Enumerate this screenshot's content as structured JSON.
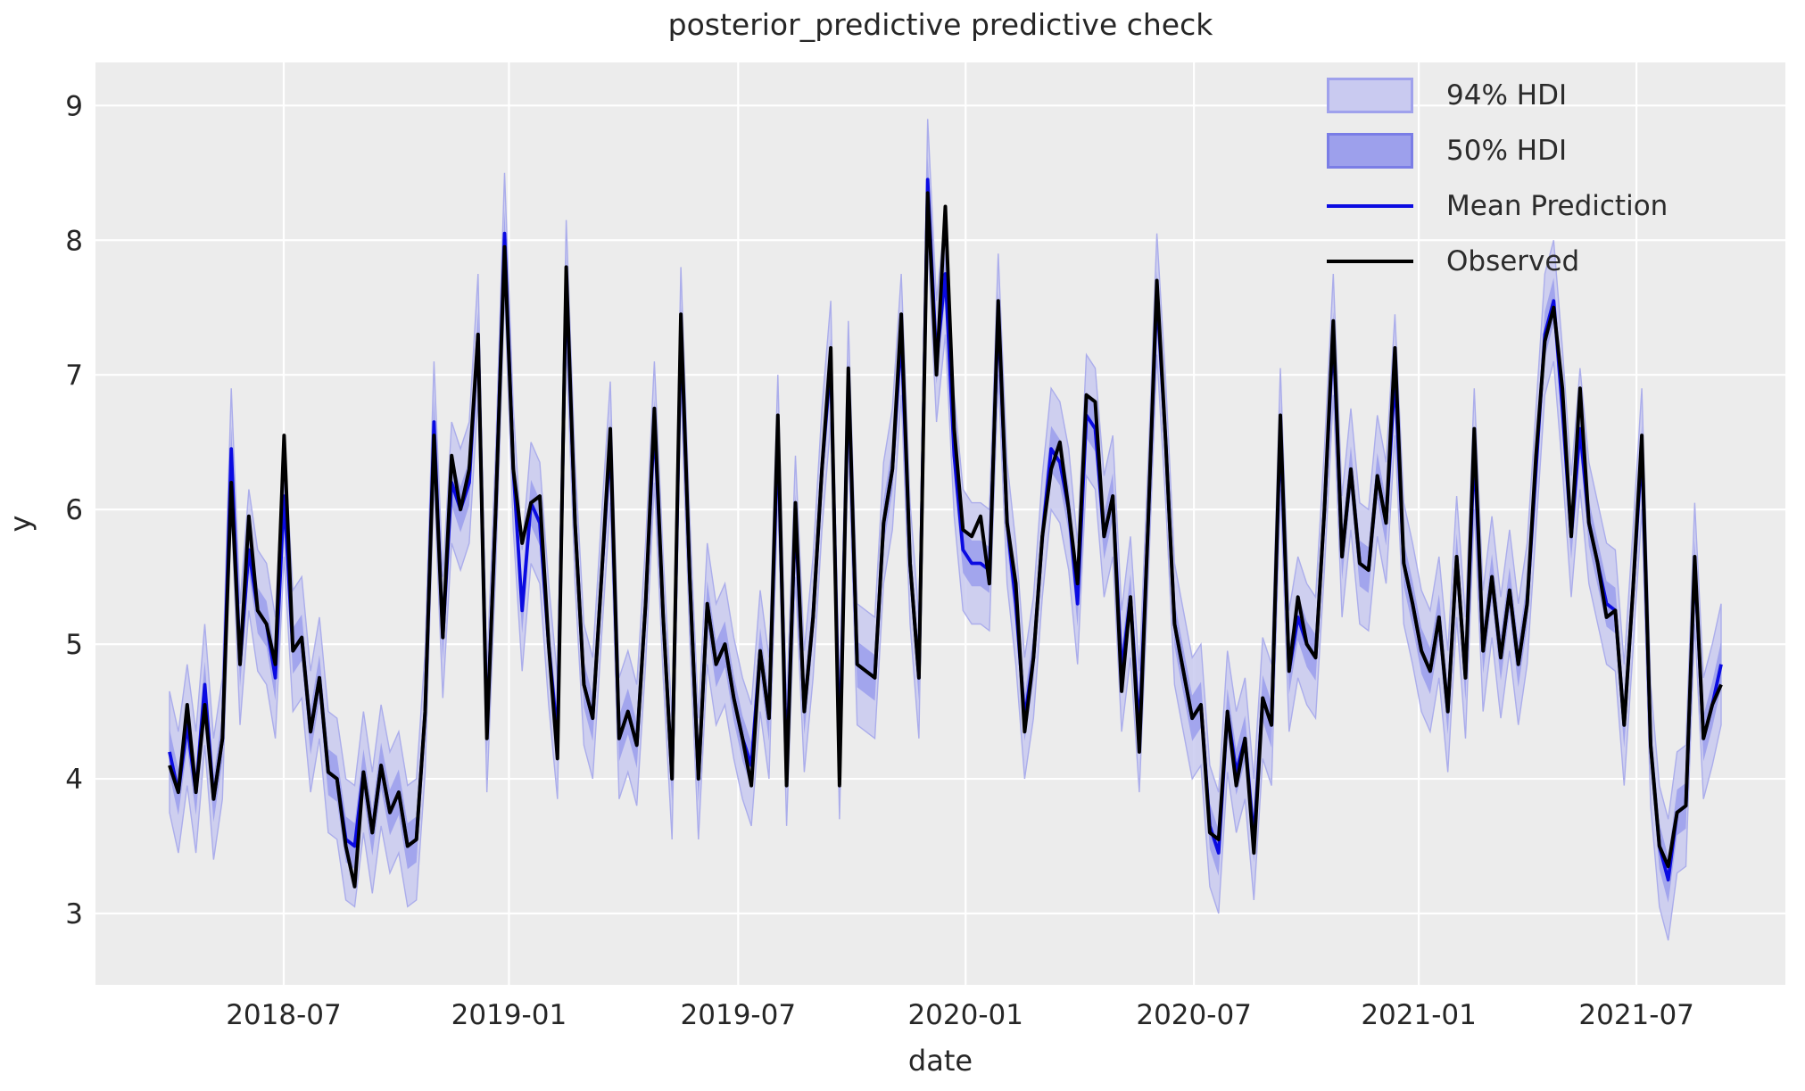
{
  "figure": {
    "title": "posterior_predictive predictive check",
    "xlabel": "date",
    "ylabel": "y"
  },
  "legend": {
    "items": [
      {
        "label": "94% HDI",
        "kind": "patch",
        "fill": "#c9caf0",
        "edge": "#9fa1ec"
      },
      {
        "label": "50% HDI",
        "kind": "patch",
        "fill": "#9da0ec",
        "edge": "#7a7de6"
      },
      {
        "label": "Mean Prediction",
        "kind": "line",
        "color": "#0b0be1"
      },
      {
        "label": "Observed",
        "kind": "line",
        "color": "#000000"
      }
    ]
  },
  "chart_data": {
    "type": "line",
    "title": "posterior_predictive predictive check",
    "xlabel": "date",
    "ylabel": "y",
    "background_color": "#ececec",
    "grid_color": "#ffffff",
    "text_color": "#262626",
    "grid": true,
    "legend_position": "upper right",
    "y_ticks": [
      3,
      4,
      5,
      6,
      7,
      8,
      9
    ],
    "ylim": [
      2.47,
      9.32
    ],
    "x_tick_labels": [
      "2018-07",
      "2019-01",
      "2019-07",
      "2020-01",
      "2020-07",
      "2021-01",
      "2021-07"
    ],
    "x_tick_weeks": [
      12.95,
      38.5,
      64.5,
      90.3,
      116.2,
      141.7,
      166.4
    ],
    "x_domain_weeks": [
      0,
      176
    ],
    "x_description": "weekly points, first point plotted at left data margin, dates per axis ticks",
    "series": [
      {
        "name": "Observed",
        "color": "#000000",
        "values": [
          4.1,
          3.9,
          4.55,
          3.9,
          4.55,
          3.85,
          4.3,
          6.2,
          4.85,
          5.95,
          5.25,
          5.15,
          4.85,
          6.55,
          4.95,
          5.05,
          4.35,
          4.75,
          4.05,
          4.0,
          3.5,
          3.2,
          4.05,
          3.6,
          4.1,
          3.75,
          3.9,
          3.5,
          3.55,
          4.5,
          6.55,
          5.05,
          6.4,
          6.0,
          6.3,
          7.3,
          4.3,
          6.0,
          7.95,
          6.3,
          5.75,
          6.05,
          6.1,
          5.0,
          4.15,
          7.8,
          5.9,
          4.7,
          4.45,
          5.5,
          6.6,
          4.3,
          4.5,
          4.25,
          5.3,
          6.75,
          5.2,
          4.0,
          7.45,
          5.5,
          4.0,
          5.3,
          4.85,
          5.0,
          4.6,
          4.3,
          3.95,
          4.95,
          4.45,
          6.7,
          3.95,
          6.05,
          4.5,
          5.2,
          6.3,
          7.2,
          3.95,
          7.05,
          4.85,
          4.8,
          4.75,
          5.9,
          6.3,
          7.45,
          5.6,
          4.75,
          8.35,
          7.0,
          8.25,
          6.6,
          5.85,
          5.8,
          5.95,
          5.45,
          7.55,
          5.9,
          5.45,
          4.35,
          4.9,
          5.8,
          6.3,
          6.5,
          6.0,
          5.45,
          6.85,
          6.8,
          5.8,
          6.1,
          4.65,
          5.35,
          4.2,
          5.9,
          7.7,
          6.5,
          5.15,
          4.8,
          4.45,
          4.55,
          3.6,
          3.55,
          4.5,
          3.95,
          4.3,
          3.45,
          4.6,
          4.4,
          6.7,
          4.8,
          5.35,
          5.0,
          4.9,
          6.0,
          7.4,
          5.65,
          6.3,
          5.6,
          5.55,
          6.25,
          5.9,
          7.2,
          5.6,
          5.3,
          4.95,
          4.8,
          5.2,
          4.5,
          5.65,
          4.75,
          6.6,
          4.95,
          5.5,
          4.9,
          5.4,
          4.85,
          5.3,
          6.4,
          7.25,
          7.5,
          6.9,
          5.8,
          6.9,
          5.9,
          5.6,
          5.2,
          5.25,
          4.4,
          5.4,
          6.55,
          4.25,
          3.5,
          3.35,
          3.75,
          3.8,
          5.65,
          4.3,
          4.55,
          4.7
        ]
      },
      {
        "name": "Mean Prediction",
        "color": "#0b0be1",
        "values": [
          4.2,
          3.9,
          4.4,
          3.9,
          4.7,
          3.85,
          4.3,
          6.45,
          4.85,
          5.7,
          5.25,
          5.15,
          4.75,
          6.1,
          4.95,
          5.05,
          4.35,
          4.75,
          4.05,
          4.0,
          3.55,
          3.5,
          4.05,
          3.6,
          4.1,
          3.75,
          3.9,
          3.5,
          3.55,
          4.5,
          6.65,
          5.05,
          6.2,
          6.0,
          6.2,
          7.3,
          4.35,
          6.0,
          8.05,
          6.3,
          5.25,
          6.05,
          5.9,
          5.0,
          4.3,
          7.7,
          5.9,
          4.7,
          4.45,
          5.5,
          6.5,
          4.3,
          4.5,
          4.25,
          5.3,
          6.65,
          5.2,
          4.0,
          7.35,
          5.5,
          4.0,
          5.3,
          4.85,
          5.0,
          4.6,
          4.3,
          4.1,
          4.95,
          4.45,
          6.55,
          4.1,
          5.95,
          4.5,
          5.2,
          6.3,
          7.1,
          4.15,
          6.95,
          4.85,
          4.8,
          4.75,
          5.9,
          6.3,
          7.3,
          5.6,
          4.75,
          8.45,
          7.1,
          7.75,
          6.4,
          5.7,
          5.6,
          5.6,
          5.55,
          7.45,
          5.9,
          5.3,
          4.45,
          4.9,
          5.8,
          6.45,
          6.35,
          6.0,
          5.3,
          6.7,
          6.6,
          5.8,
          6.1,
          4.8,
          5.35,
          4.35,
          5.9,
          7.6,
          6.5,
          5.15,
          4.8,
          4.45,
          4.55,
          3.65,
          3.45,
          4.5,
          4.05,
          4.3,
          3.55,
          4.6,
          4.4,
          6.6,
          4.8,
          5.2,
          5.0,
          4.9,
          6.0,
          7.3,
          5.65,
          6.3,
          5.6,
          5.55,
          6.25,
          5.9,
          7.0,
          5.6,
          5.3,
          4.95,
          4.8,
          5.2,
          4.5,
          5.65,
          4.75,
          6.45,
          4.95,
          5.5,
          4.9,
          5.4,
          4.85,
          5.3,
          6.3,
          7.3,
          7.55,
          6.75,
          5.8,
          6.6,
          5.9,
          5.6,
          5.3,
          5.25,
          4.4,
          5.4,
          6.45,
          4.25,
          3.5,
          3.25,
          3.75,
          3.8,
          5.6,
          4.3,
          4.55,
          4.85
        ]
      }
    ],
    "bands": [
      {
        "name": "94% HDI",
        "around": "Mean Prediction",
        "halfwidth": 0.45,
        "fill": "#c9caf0",
        "edge": "#abadeb"
      },
      {
        "name": "50% HDI",
        "around": "Mean Prediction",
        "halfwidth": 0.17,
        "fill": "#9da0ec",
        "edge": "#8врadea"
      }
    ]
  }
}
